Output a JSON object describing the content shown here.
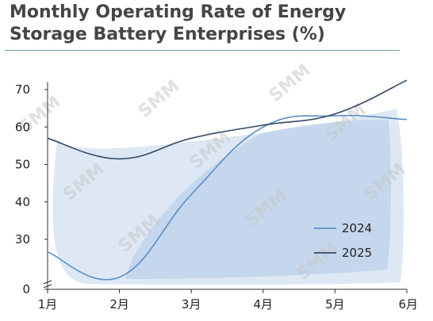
{
  "title": "Monthly Operating Rate of Energy Storage Battery Enterprises (%)",
  "watermark": "SMM",
  "chart_data": {
    "type": "line",
    "title": "Monthly Operating Rate of Energy Storage Battery Enterprises (%)",
    "xlabel": "",
    "ylabel": "",
    "categories": [
      "1月",
      "2月",
      "3月",
      "4月",
      "5月",
      "6月"
    ],
    "y_ticks": [
      0,
      30,
      40,
      50,
      60,
      70
    ],
    "ylim": [
      0,
      72
    ],
    "axis_break": true,
    "grid": false,
    "legend_position": "bottom-right",
    "series": [
      {
        "name": "2024",
        "color": "#5b8fc7",
        "values": [
          27,
          21,
          42,
          60,
          63,
          62
        ]
      },
      {
        "name": "2025",
        "color": "#334a66",
        "values": [
          57,
          51.5,
          57,
          60.5,
          63.5,
          72.5
        ]
      }
    ]
  }
}
